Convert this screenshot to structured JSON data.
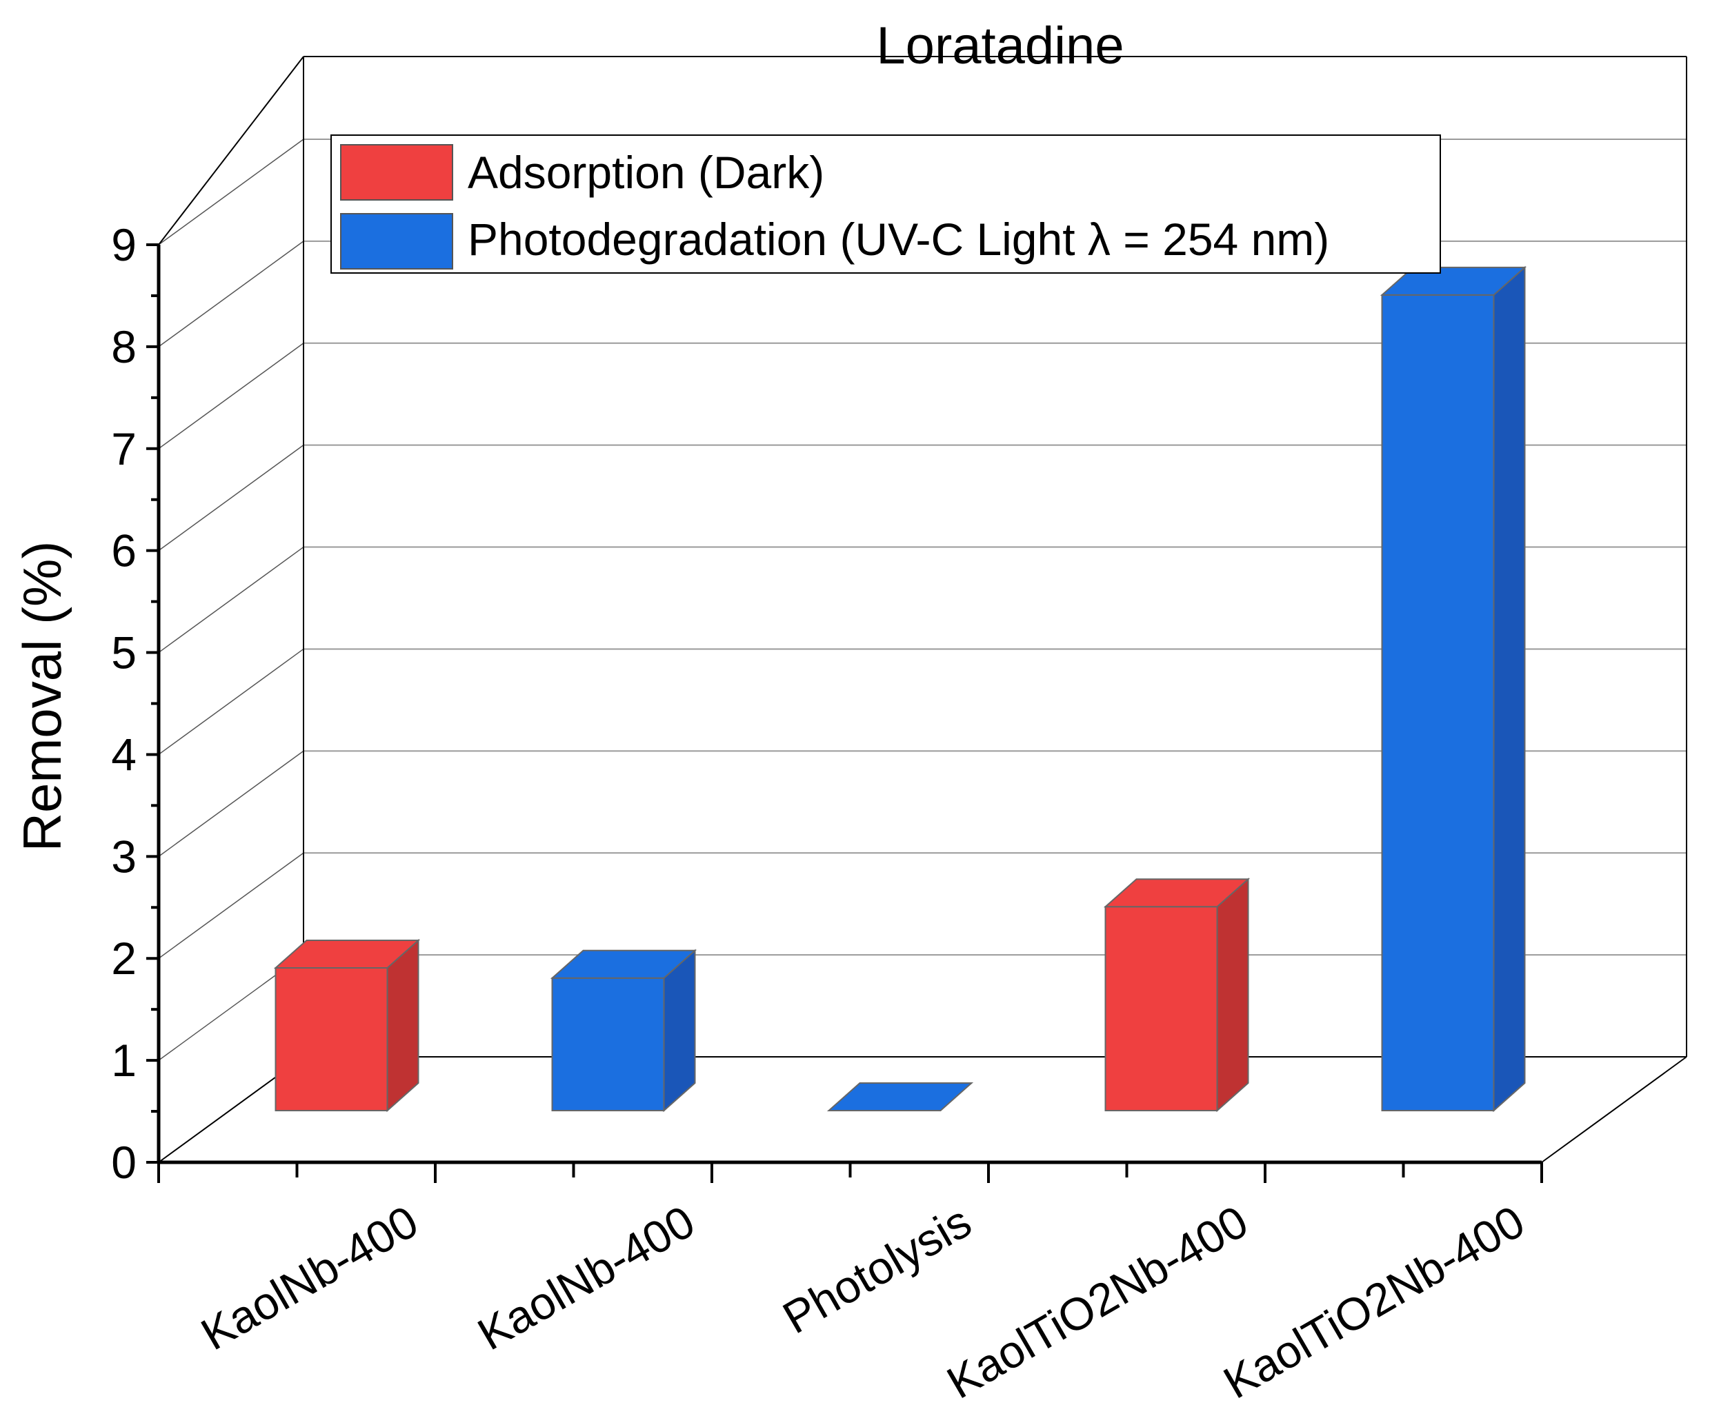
{
  "chart_data": {
    "type": "bar",
    "title": "Loratadine",
    "xlabel": "",
    "ylabel": "Removal (%)",
    "ylim": [
      0,
      9
    ],
    "yticks": [
      0,
      1,
      2,
      3,
      4,
      5,
      6,
      7,
      8,
      9
    ],
    "grid": true,
    "legend_position": "top",
    "categories": [
      "KaolNb-400",
      "KaolNb-400",
      "Photolysis",
      "KaolTiO2Nb-400",
      "KaolTiO2Nb-400"
    ],
    "series": [
      {
        "name": "Adsorption (Dark)",
        "color": "#ef4040",
        "dark_color": "#bf3232"
      },
      {
        "name": "Photodegradation (UV-C Light λ = 254 nm)",
        "color": "#1b6fe0",
        "dark_color": "#1a56b8"
      }
    ],
    "bars": [
      {
        "category": "KaolNb-400",
        "series": 0,
        "value": 1.4
      },
      {
        "category": "KaolNb-400",
        "series": 1,
        "value": 1.3
      },
      {
        "category": "Photolysis",
        "series": 1,
        "value": 0.0
      },
      {
        "category": "KaolTiO2Nb-400",
        "series": 0,
        "value": 2.0
      },
      {
        "category": "KaolTiO2Nb-400",
        "series": 1,
        "value": 8.0
      }
    ]
  }
}
